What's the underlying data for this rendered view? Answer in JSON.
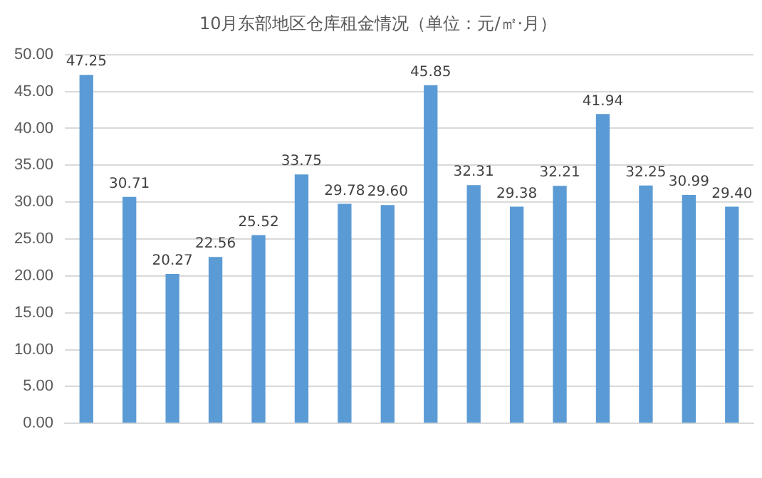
{
  "chart_data": {
    "type": "bar",
    "title": "10月东部地区仓库租金情况（单位：元/㎡·月）",
    "categories": [
      null,
      null,
      null,
      null,
      null,
      null,
      null,
      null,
      null,
      null,
      null,
      null,
      null,
      null,
      null,
      null
    ],
    "values": [
      47.25,
      30.71,
      20.27,
      22.56,
      25.52,
      33.75,
      29.78,
      29.6,
      45.85,
      32.31,
      29.38,
      32.21,
      41.94,
      32.25,
      30.99,
      29.4
    ],
    "value_labels": [
      "47.25",
      "30.71",
      "20.27",
      "22.56",
      "25.52",
      "33.75",
      "29.78",
      "29.60",
      "45.85",
      "32.31",
      "29.38",
      "32.21",
      "41.94",
      "32.25",
      "30.99",
      "29.40"
    ],
    "color": "#5b9bd5",
    "ylim": [
      0,
      50
    ],
    "yticks": [
      {
        "value": 0,
        "label": "0.00"
      },
      {
        "value": 5,
        "label": "5.00"
      },
      {
        "value": 10,
        "label": "10.00"
      },
      {
        "value": 15,
        "label": "15.00"
      },
      {
        "value": 20,
        "label": "20.00"
      },
      {
        "value": 25,
        "label": "25.00"
      },
      {
        "value": 30,
        "label": "30.00"
      },
      {
        "value": 35,
        "label": "35.00"
      },
      {
        "value": 40,
        "label": "40.00"
      },
      {
        "value": 45,
        "label": "45.00"
      },
      {
        "value": 50,
        "label": "50.00"
      }
    ],
    "grid": "y"
  }
}
